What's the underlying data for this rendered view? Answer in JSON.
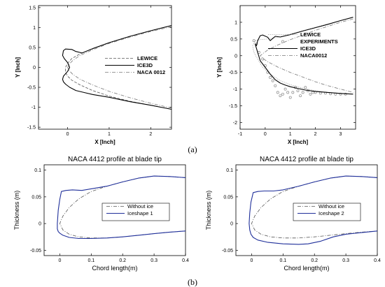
{
  "figure": {
    "label_a": "(a)",
    "label_b": "(b)"
  },
  "chart_data": [
    {
      "type": "line",
      "panel": "a-left",
      "xlabel": "X [Inch]",
      "ylabel": "Y [Inch]",
      "xlim": [
        -0.7,
        2.5
      ],
      "ylim": [
        -1.55,
        1.55
      ],
      "xticks": [
        0,
        1,
        2
      ],
      "yticks": [
        -1.5,
        -1,
        -0.5,
        0,
        0.5,
        1,
        1.5
      ],
      "xtick_labels": [
        "0",
        "1",
        "2"
      ],
      "ytick_labels": [
        "-1.5",
        "-1",
        "-0.5",
        "0",
        "0.5",
        "1",
        "1.5"
      ],
      "legend_position": "center-right",
      "series": [
        {
          "name": "LEWICE",
          "style": "dashed",
          "color": "#555555",
          "x": [
            2.5,
            2.0,
            1.5,
            1.0,
            0.6,
            0.3,
            0.1,
            0.0,
            -0.05,
            -0.05,
            0.0,
            0.1,
            0.3,
            0.6,
            1.0,
            1.5,
            2.0,
            2.5
          ],
          "y": [
            1.05,
            0.92,
            0.78,
            0.62,
            0.47,
            0.34,
            0.22,
            0.1,
            0.0,
            -0.12,
            -0.22,
            -0.32,
            -0.44,
            -0.58,
            -0.72,
            -0.85,
            -0.95,
            -1.05
          ]
        },
        {
          "name": "ICE3D",
          "style": "solid",
          "color": "#000000",
          "x": [
            2.5,
            2.0,
            1.5,
            1.0,
            0.6,
            0.35,
            0.2,
            0.1,
            -0.05,
            -0.1,
            -0.12,
            -0.08,
            0.0,
            0.05,
            0.0,
            -0.1,
            -0.12,
            -0.1,
            -0.05,
            0.05,
            0.2,
            0.4,
            0.6,
            1.0,
            1.5,
            2.0,
            2.5
          ],
          "y": [
            1.05,
            0.92,
            0.78,
            0.62,
            0.47,
            0.36,
            0.4,
            0.45,
            0.46,
            0.42,
            0.3,
            0.22,
            0.12,
            0.0,
            -0.1,
            -0.22,
            -0.3,
            -0.36,
            -0.42,
            -0.5,
            -0.58,
            -0.63,
            -0.68,
            -0.75,
            -0.86,
            -0.95,
            -1.05
          ]
        },
        {
          "name": "NACA 0012",
          "style": "dashdot",
          "color": "#777777",
          "x": [
            2.5,
            2.0,
            1.5,
            1.0,
            0.6,
            0.3,
            0.12,
            0.03,
            0.0,
            0.03,
            0.12,
            0.3,
            0.6,
            1.0,
            1.5,
            2.0,
            2.5
          ],
          "y": [
            1.02,
            0.9,
            0.76,
            0.6,
            0.44,
            0.3,
            0.17,
            0.07,
            0.0,
            -0.07,
            -0.17,
            -0.3,
            -0.44,
            -0.6,
            -0.76,
            -0.9,
            -1.02
          ]
        }
      ]
    },
    {
      "type": "line",
      "panel": "a-right",
      "xlabel": "X [Inch]",
      "ylabel": "Y [Inch]",
      "xlim": [
        -1,
        3.6
      ],
      "ylim": [
        -2.2,
        1.5
      ],
      "xticks": [
        -1,
        0,
        1,
        2,
        3
      ],
      "yticks": [
        -2,
        -1.5,
        -1,
        -0.5,
        0,
        0.5,
        1
      ],
      "xtick_labels": [
        "-1",
        "0",
        "1",
        "2",
        "3"
      ],
      "ytick_labels": [
        "-2",
        "-1.5",
        "-1",
        "-0.5",
        "0",
        "0.5",
        "1"
      ],
      "legend_position": "top-right",
      "series": [
        {
          "name": "LEWICE",
          "style": "dotted",
          "color": "#999999",
          "x": [
            3.5,
            3.0,
            2.5,
            2.0,
            1.5,
            1.0,
            0.5,
            0.1,
            -0.2,
            -0.4,
            -0.5,
            -0.45,
            -0.3,
            -0.1,
            0.2,
            0.6,
            1.0,
            1.5,
            2.0,
            2.5,
            3.0,
            3.5
          ],
          "y": [
            1.15,
            1.05,
            0.95,
            0.85,
            0.75,
            0.65,
            0.55,
            0.5,
            0.48,
            0.45,
            0.3,
            0.1,
            -0.1,
            -0.35,
            -0.55,
            -0.75,
            -0.87,
            -0.97,
            -1.05,
            -1.1,
            -1.13,
            -1.15
          ]
        },
        {
          "name": "EXPERIMENTS",
          "style": "markers",
          "color": "#888888",
          "x": [
            -0.45,
            -0.35,
            -0.25,
            -0.1,
            0.0,
            0.1,
            0.2,
            0.3,
            0.4,
            0.5,
            0.6,
            0.7,
            0.8,
            0.9,
            1.0,
            1.1,
            1.2,
            1.3,
            1.4,
            1.5,
            1.6,
            1.7,
            1.8,
            1.9,
            2.0,
            2.2,
            2.4,
            2.6,
            2.8,
            3.0,
            3.2
          ],
          "y": [
            0.45,
            0.35,
            0.1,
            -0.1,
            -0.3,
            -0.5,
            -0.65,
            -0.75,
            -0.9,
            -1.1,
            -1.2,
            -1.15,
            -1.0,
            -1.1,
            -1.25,
            -1.1,
            -0.95,
            -1.05,
            -1.2,
            -1.1,
            -0.95,
            -1.05,
            -1.15,
            -1.1,
            -1.1,
            -1.12,
            -1.12,
            -1.14,
            -1.15,
            -1.15,
            -1.15
          ]
        },
        {
          "name": "ICE3D",
          "style": "solid",
          "color": "#000000",
          "x": [
            3.5,
            3.0,
            2.5,
            2.0,
            1.5,
            1.0,
            0.6,
            0.4,
            0.2,
            0.1,
            -0.1,
            -0.2,
            -0.3,
            -0.35,
            -0.4,
            -0.3,
            -0.2,
            0.0,
            0.2,
            0.4,
            0.6,
            0.8,
            1.0,
            1.3,
            1.6,
            2.0,
            2.5,
            3.0,
            3.5
          ],
          "y": [
            1.15,
            1.05,
            0.94,
            0.84,
            0.74,
            0.63,
            0.56,
            0.58,
            0.45,
            0.55,
            0.62,
            0.6,
            0.45,
            0.3,
            0.35,
            0.1,
            -0.15,
            -0.35,
            -0.55,
            -0.72,
            -0.82,
            -0.88,
            -0.93,
            -0.98,
            -1.03,
            -1.07,
            -1.1,
            -1.13,
            -1.15
          ]
        },
        {
          "name": "NACA0012",
          "style": "dashdot",
          "color": "#777777",
          "x": [
            3.5,
            3.0,
            2.5,
            2.0,
            1.5,
            1.0,
            0.5,
            0.1,
            -0.1,
            -0.2,
            -0.1,
            0.1,
            0.5,
            1.0,
            1.5,
            2.0,
            2.5,
            3.0,
            3.5
          ],
          "y": [
            1.1,
            1.0,
            0.88,
            0.76,
            0.62,
            0.48,
            0.32,
            0.17,
            0.06,
            0.0,
            -0.08,
            -0.18,
            -0.34,
            -0.5,
            -0.64,
            -0.78,
            -0.9,
            -1.0,
            -1.1
          ]
        }
      ]
    },
    {
      "type": "line",
      "panel": "b-left",
      "title": "NACA 4412 profile at blade tip",
      "xlabel": "Chord length(m)",
      "ylabel": "Thickness (m)",
      "xlim": [
        -0.05,
        0.4
      ],
      "ylim": [
        -0.06,
        0.11
      ],
      "xticks": [
        0,
        0.1,
        0.2,
        0.3,
        0.4
      ],
      "yticks": [
        -0.05,
        0,
        0.05,
        0.1
      ],
      "xtick_labels": [
        "0",
        "0.1",
        "0.2",
        "0.3",
        "0.4"
      ],
      "ytick_labels": [
        "-0.05",
        "0",
        "0.05",
        "0.1"
      ],
      "legend_position": "lower-center",
      "series": [
        {
          "name": "Without ice",
          "style": "dashdot",
          "color": "#555555",
          "x": [
            0.4,
            0.35,
            0.3,
            0.25,
            0.2,
            0.15,
            0.1,
            0.06,
            0.03,
            0.01,
            0.0,
            0.01,
            0.03,
            0.06,
            0.1,
            0.15,
            0.2,
            0.25,
            0.3,
            0.35,
            0.4
          ],
          "y": [
            0.086,
            0.088,
            0.089,
            0.085,
            0.078,
            0.07,
            0.06,
            0.046,
            0.03,
            0.014,
            0.0,
            -0.012,
            -0.02,
            -0.025,
            -0.027,
            -0.027,
            -0.025,
            -0.022,
            -0.019,
            -0.016,
            -0.014
          ]
        },
        {
          "name": "Iceshape 1",
          "style": "solid",
          "color": "#1f2f9a",
          "x": [
            0.4,
            0.35,
            0.3,
            0.25,
            0.2,
            0.15,
            0.1,
            0.07,
            0.04,
            0.02,
            0.005,
            0.0,
            -0.005,
            -0.008,
            -0.008,
            -0.005,
            0.0,
            0.01,
            0.03,
            0.06,
            0.1,
            0.15,
            0.2,
            0.25,
            0.3,
            0.35,
            0.4
          ],
          "y": [
            0.086,
            0.088,
            0.089,
            0.085,
            0.078,
            0.07,
            0.065,
            0.062,
            0.063,
            0.062,
            0.06,
            0.045,
            0.025,
            0.0,
            -0.01,
            -0.015,
            -0.018,
            -0.022,
            -0.026,
            -0.028,
            -0.028,
            -0.027,
            -0.025,
            -0.022,
            -0.019,
            -0.016,
            -0.014
          ]
        }
      ]
    },
    {
      "type": "line",
      "panel": "b-right",
      "title": "NACA 4412 profile at blade tip",
      "xlabel": "Chord length(m)",
      "ylabel": "Thickness (m)",
      "xlim": [
        -0.05,
        0.4
      ],
      "ylim": [
        -0.06,
        0.11
      ],
      "xticks": [
        0,
        0.1,
        0.2,
        0.3,
        0.4
      ],
      "yticks": [
        -0.05,
        0,
        0.05,
        0.1
      ],
      "xtick_labels": [
        "0",
        "0.1",
        "0.2",
        "0.3",
        "0.4"
      ],
      "ytick_labels": [
        "-0.05",
        "0",
        "0.05",
        "0.1"
      ],
      "legend_position": "lower-center",
      "series": [
        {
          "name": "Without ice",
          "style": "dashdot",
          "color": "#555555",
          "x": [
            0.4,
            0.35,
            0.3,
            0.25,
            0.2,
            0.15,
            0.1,
            0.06,
            0.03,
            0.01,
            0.0,
            0.01,
            0.03,
            0.06,
            0.1,
            0.15,
            0.2,
            0.25,
            0.3,
            0.35,
            0.4
          ],
          "y": [
            0.086,
            0.088,
            0.089,
            0.085,
            0.078,
            0.07,
            0.06,
            0.046,
            0.03,
            0.014,
            0.0,
            -0.012,
            -0.02,
            -0.025,
            -0.027,
            -0.027,
            -0.025,
            -0.022,
            -0.019,
            -0.016,
            -0.014
          ]
        },
        {
          "name": "Iceshape 2",
          "style": "solid",
          "color": "#1f2f9a",
          "x": [
            0.4,
            0.35,
            0.3,
            0.25,
            0.2,
            0.15,
            0.1,
            0.07,
            0.04,
            0.02,
            0.005,
            -0.002,
            -0.006,
            -0.008,
            -0.006,
            -0.002,
            0.005,
            0.02,
            0.05,
            0.1,
            0.15,
            0.18,
            0.22,
            0.26,
            0.3,
            0.35,
            0.4
          ],
          "y": [
            0.086,
            0.088,
            0.089,
            0.085,
            0.078,
            0.07,
            0.063,
            0.061,
            0.061,
            0.06,
            0.058,
            0.04,
            0.02,
            0.0,
            -0.012,
            -0.02,
            -0.026,
            -0.031,
            -0.035,
            -0.038,
            -0.039,
            -0.038,
            -0.033,
            -0.025,
            -0.02,
            -0.017,
            -0.014
          ]
        }
      ]
    }
  ]
}
